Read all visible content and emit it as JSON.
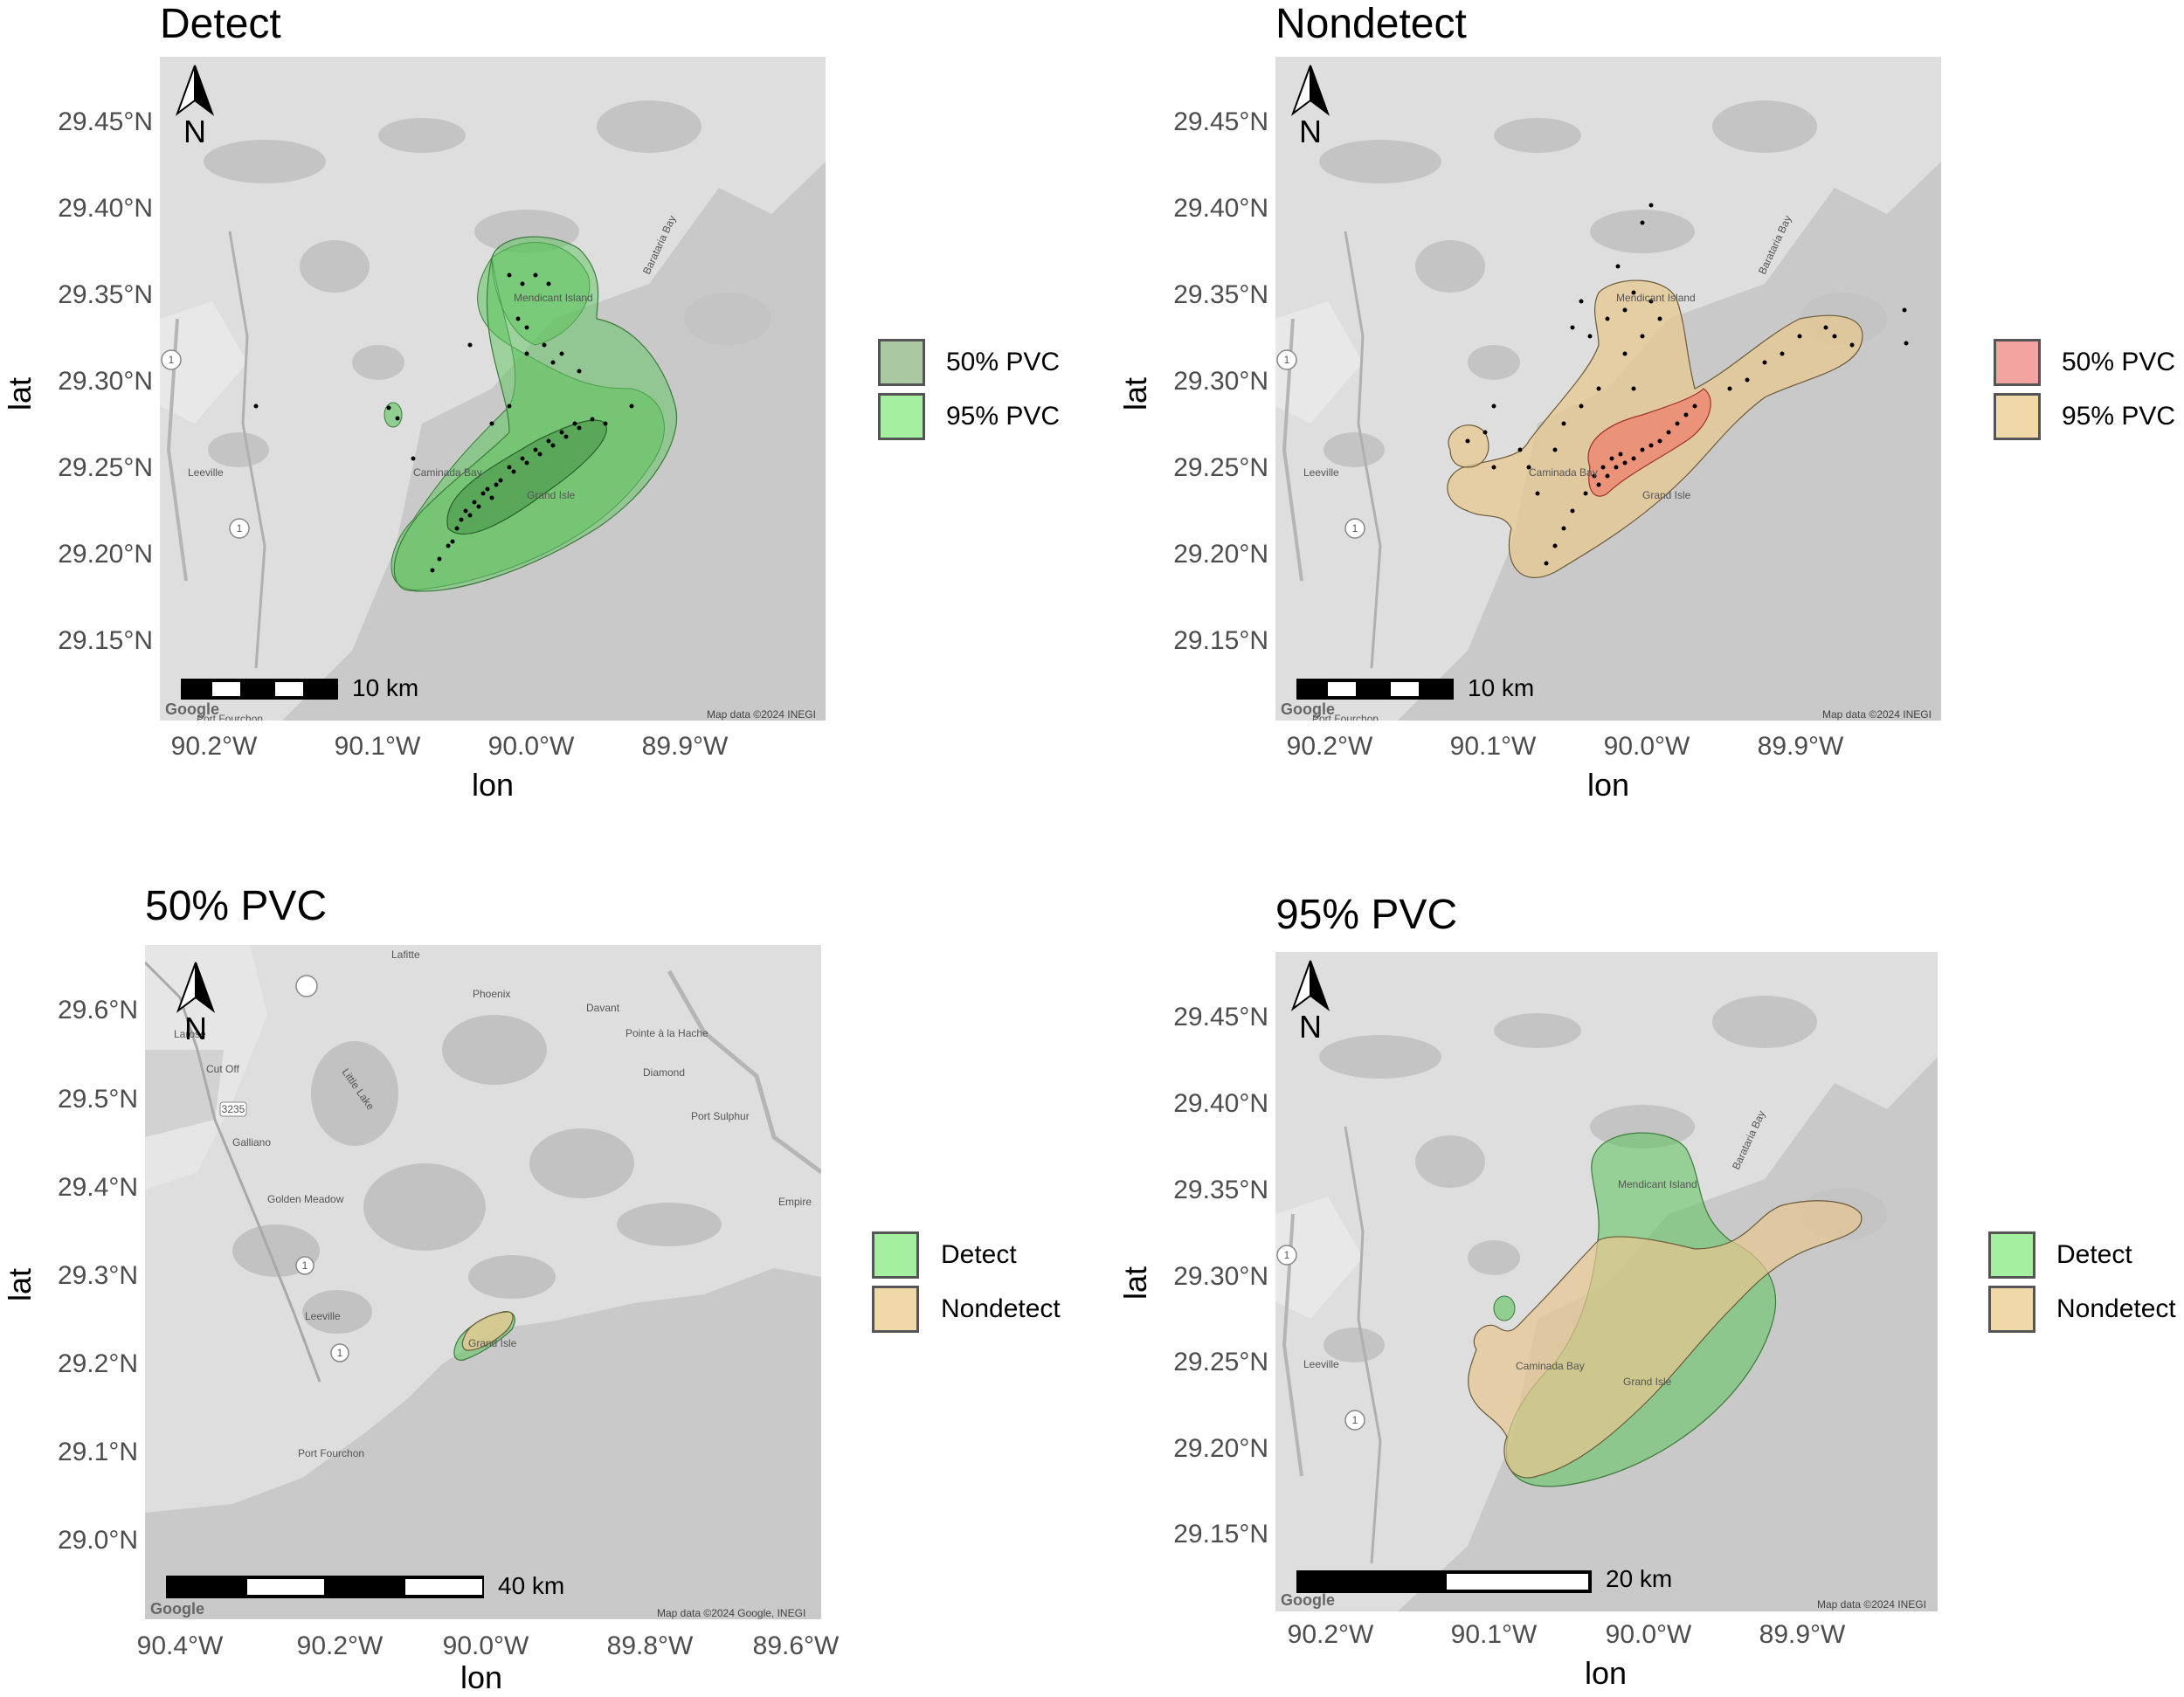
{
  "axes": {
    "ylabel": "lat",
    "xlabel": "lon"
  },
  "panels": {
    "detect": {
      "title": "Detect",
      "yticks": [
        "29.45°N",
        "29.40°N",
        "29.35°N",
        "29.30°N",
        "29.25°N",
        "29.20°N",
        "29.15°N"
      ],
      "xticks": [
        "90.2°W",
        "90.1°W",
        "90.0°W",
        "89.9°W"
      ],
      "scale": "10 km",
      "attribution": "Map data ©2024 INEGI",
      "google": "Google",
      "north": "N",
      "legend": [
        {
          "label": "50% PVC",
          "color": "#a9c9a3"
        },
        {
          "label": "95% PVC",
          "color": "#a4f0a0"
        }
      ],
      "places": {
        "leeville": "Leeville",
        "caminada": "Caminada Bay",
        "grandisle": "Grand Isle",
        "mendicant": "Mendicant Island",
        "barataria": "Barataria Bay",
        "fourchon": "Port Fourchon",
        "hwy": "1"
      }
    },
    "nondetect": {
      "title": "Nondetect",
      "yticks": [
        "29.45°N",
        "29.40°N",
        "29.35°N",
        "29.30°N",
        "29.25°N",
        "29.20°N",
        "29.15°N"
      ],
      "xticks": [
        "90.2°W",
        "90.1°W",
        "90.0°W",
        "89.9°W"
      ],
      "scale": "10 km",
      "attribution": "Map data ©2024 INEGI",
      "google": "Google",
      "north": "N",
      "legend": [
        {
          "label": "50% PVC",
          "color": "#f2a3a0"
        },
        {
          "label": "95% PVC",
          "color": "#f0d8a8"
        }
      ],
      "places": {
        "leeville": "Leeville",
        "caminada": "Caminada Bay",
        "grandisle": "Grand Isle",
        "mendicant": "Mendicant Island",
        "barataria": "Barataria Bay",
        "fourchon": "Port Fourchon",
        "hwy": "1"
      }
    },
    "pvc50": {
      "title": "50% PVC",
      "yticks": [
        "29.6°N",
        "29.5°N",
        "29.4°N",
        "29.3°N",
        "29.2°N",
        "29.1°N",
        "29.0°N"
      ],
      "xticks": [
        "90.4°W",
        "90.2°W",
        "90.0°W",
        "89.8°W",
        "89.6°W"
      ],
      "scale": "40 km",
      "attribution": "Map data ©2024 Google, INEGI",
      "google": "Google",
      "north": "N",
      "legend": [
        {
          "label": "Detect",
          "color": "#a4f0a0"
        },
        {
          "label": "Nondetect",
          "color": "#f0d8a8"
        }
      ],
      "places": {
        "lafitte": "Lafitte",
        "phoenix": "Phoenix",
        "davant": "Davant",
        "pointe": "Pointe à la Hache",
        "diamond": "Diamond",
        "portsulphur": "Port Sulphur",
        "empire": "Empire",
        "larose": "Larose",
        "cutoff": "Cut Off",
        "galliano": "Galliano",
        "golden": "Golden Meadow",
        "littlelake": "Little Lake",
        "leeville": "Leeville",
        "grandisle": "Grand Isle",
        "fourchon": "Port Fourchon",
        "hwy": "1",
        "hwy3235": "3235"
      }
    },
    "pvc95": {
      "title": "95% PVC",
      "yticks": [
        "29.45°N",
        "29.40°N",
        "29.35°N",
        "29.30°N",
        "29.25°N",
        "29.20°N",
        "29.15°N"
      ],
      "xticks": [
        "90.2°W",
        "90.1°W",
        "90.0°W",
        "89.9°W"
      ],
      "scale": "20 km",
      "attribution": "Map data ©2024 INEGI",
      "google": "Google",
      "north": "N",
      "legend": [
        {
          "label": "Detect",
          "color": "#a4f0a0"
        },
        {
          "label": "Nondetect",
          "color": "#f0d8a8"
        }
      ],
      "places": {
        "leeville": "Leeville",
        "caminada": "Caminada Bay",
        "grandisle": "Grand Isle",
        "mendicant": "Mendicant Island",
        "barataria": "Barataria Bay",
        "hwy": "1"
      }
    }
  }
}
